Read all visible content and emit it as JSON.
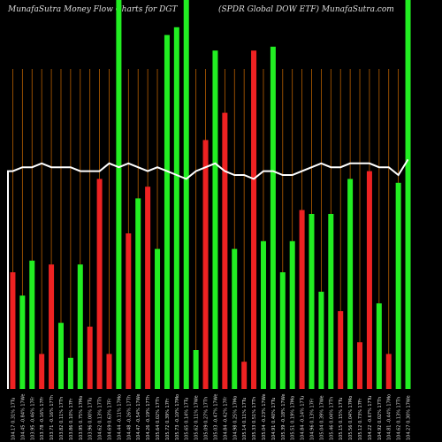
{
  "header": {
    "left_text": "MunafaSutra  Money Flow  Charts for DGT",
    "right_text": "(SPDR Global DOW ETF) MunafaSutra.com"
  },
  "colors": {
    "background": "#000000",
    "up": "#22ee22",
    "down": "#ee2222",
    "gridline": "#b85f00",
    "flow_line": "#ffffff",
    "tick_text": "#dddddd"
  },
  "chart_data": {
    "type": "bar",
    "title": "",
    "xlabel": "",
    "ylabel": "",
    "grid": true,
    "legend": "none",
    "ylim": [
      0,
      100
    ],
    "categories": [
      "104.17 0.31% 17Tu",
      "104.45 -0.84% 17We",
      "103.95 -0.46% 17Fr",
      "103.78 -0.16% 17Fr",
      "103.71 -0.16% 17Th",
      "103.82 0.11% 17Th",
      "103.86 0.10% 17Fr",
      "103.95 0.75% 17Mo",
      "103.96 0.00% 17Tu",
      "104.62 0.13% 17Th",
      "104.69 0.63% 17Fr",
      "104.44 -0.11% 17Mo",
      "104.48 -0.26% 17Th",
      "104.47 -0.54% 17We",
      "104.26 -0.19% 17Th",
      "105.64 0.02% 17Th",
      "105.72 0.39% 17Fr",
      "105.73 -0.10% 17Mo",
      "105.65 0.14% 17Tu",
      "105.62 0.11% 17We",
      "105.09 0.27% 17Th",
      "105.03 -0.47% 17We",
      "104.84 -0.42% 17Fr",
      "104.98 0.25% 17Mo",
      "105.14 0.11% 17Tu",
      "105.33 0.51% 17Th",
      "105.04 -0.23% 17We",
      "104.91 0.40% 17Tu",
      "105.39 -0.18% 17We",
      "105.51 0.19% 17Mo",
      "104.84 -0.14% 17Tu",
      "104.96 0.13% 17Fr",
      "105.04 0.39% 17We",
      "105.46 0.04% 17Th",
      "105.15 0.15% 17Tu",
      "105.56 0.04% 17Mo",
      "105.12 0.73% 17Fr",
      "104.22 -0.67% 17Tu",
      "104.92 0.02% 17Th",
      "104.81 -0.44% 17Mo",
      "104.62 0.13% 17Th",
      "104.27 0.30% 17We"
    ],
    "series": [
      {
        "values": [
          30,
          24,
          33,
          9,
          32,
          17,
          8,
          32,
          16,
          54,
          9,
          100,
          40,
          49,
          52,
          36,
          91,
          93,
          100,
          10,
          64,
          87,
          71,
          36,
          7,
          87,
          38,
          88,
          30,
          38,
          46,
          45,
          25,
          45,
          20,
          54,
          12,
          56,
          22,
          9,
          53,
          100
        ],
        "colors": [
          "down",
          "up",
          "up",
          "down",
          "down",
          "up",
          "up",
          "up",
          "down",
          "down",
          "down",
          "up",
          "down",
          "up",
          "down",
          "up",
          "up",
          "up",
          "up",
          "up",
          "down",
          "up",
          "down",
          "up",
          "down",
          "down",
          "up",
          "up",
          "up",
          "up",
          "down",
          "up",
          "up",
          "up",
          "down",
          "up",
          "down",
          "down",
          "up",
          "down",
          "up",
          "up"
        ]
      }
    ],
    "overlay_line": [
      56,
      57,
      57,
      58,
      57,
      57,
      57,
      56,
      56,
      56,
      58,
      57,
      58,
      57,
      56,
      57,
      56,
      55,
      54,
      56,
      57,
      58,
      56,
      55,
      55,
      54,
      56,
      56,
      55,
      55,
      56,
      57,
      58,
      57,
      57,
      58,
      58,
      58,
      57,
      57,
      55,
      59
    ]
  }
}
